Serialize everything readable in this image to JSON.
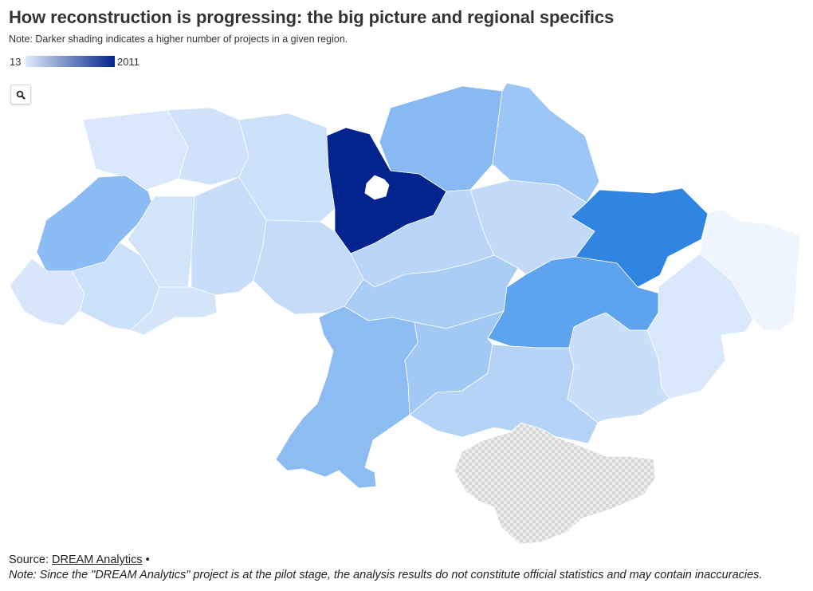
{
  "header": {
    "title": "How reconstruction is progressing: the big picture and regional specifics",
    "note": "Note: Darker shading indicates a higher number of projects in a given region."
  },
  "legend": {
    "min": "13",
    "max": "2011",
    "color_low": "#dfeafa",
    "color_high": "#03248e"
  },
  "controls": {
    "search_icon": "search-icon"
  },
  "map": {
    "occupied_fill": "#e3e3e3",
    "regions": [
      {
        "key": "volyn",
        "color": "#dbe8fb"
      },
      {
        "key": "rivne",
        "color": "#cfe2fa"
      },
      {
        "key": "zhytomyr",
        "color": "#cbe0f9"
      },
      {
        "key": "kyiv-oblast",
        "color": "#03248e"
      },
      {
        "key": "kyiv-city",
        "color": "#ffffff"
      },
      {
        "key": "chernihiv",
        "color": "#88b9f2"
      },
      {
        "key": "sumy",
        "color": "#9cc6f5"
      },
      {
        "key": "kharkiv",
        "color": "#3085e3"
      },
      {
        "key": "luhansk",
        "color": "#eff5fd"
      },
      {
        "key": "lviv",
        "color": "#8bbbf2"
      },
      {
        "key": "ternopil",
        "color": "#d2e4fa"
      },
      {
        "key": "khmelnytskyi",
        "color": "#c7ddf9"
      },
      {
        "key": "vinnytsia",
        "color": "#c5dcf8"
      },
      {
        "key": "cherkasy",
        "color": "#bad5f7"
      },
      {
        "key": "poltava",
        "color": "#c2daf8"
      },
      {
        "key": "zakarpattia",
        "color": "#d7e6fb"
      },
      {
        "key": "ivano-frankivsk",
        "color": "#cbe0f9"
      },
      {
        "key": "chernivtsi",
        "color": "#d4e5fa"
      },
      {
        "key": "kirovohrad",
        "color": "#aacdf5"
      },
      {
        "key": "dnipro",
        "color": "#5ea3ed"
      },
      {
        "key": "donetsk",
        "color": "#d9e8fb"
      },
      {
        "key": "odesa",
        "color": "#8cbcf2"
      },
      {
        "key": "mykolaiv",
        "color": "#a2c9f4"
      },
      {
        "key": "kherson",
        "color": "#b4d3f7"
      },
      {
        "key": "zaporizhzhia",
        "color": "#c9def9"
      },
      {
        "key": "crimea",
        "color": "#e3e3e3"
      }
    ]
  },
  "footer": {
    "source_label": "Source:",
    "source_link": "DREAM Analytics",
    "bullet": "•",
    "disclaimer": "Note: Since the \"DREAM Analytics\" project is at the pilot stage, the analysis results do not constitute official statistics and may contain inaccuracies."
  }
}
